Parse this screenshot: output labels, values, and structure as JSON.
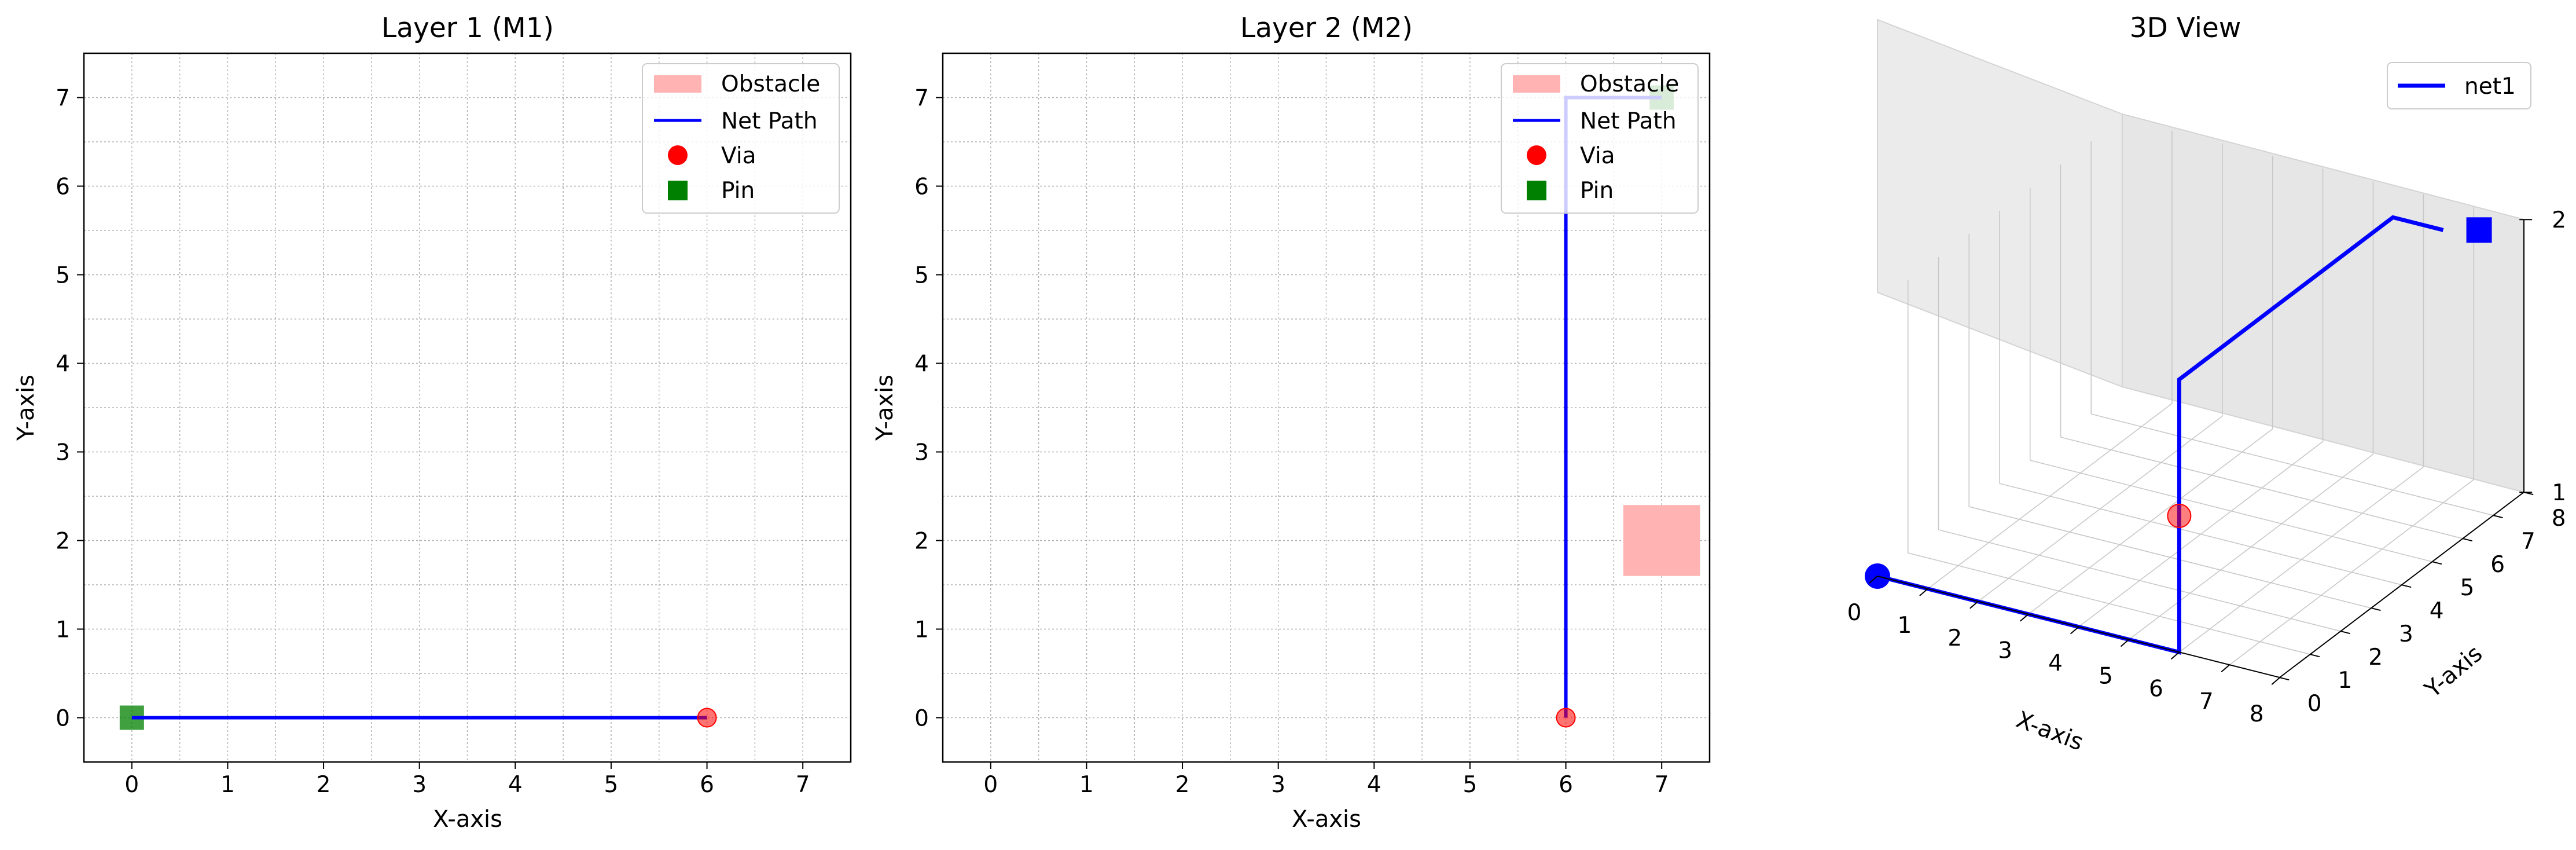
{
  "panels": [
    {
      "title": "Layer 1 (M1)",
      "xlabel": "X-axis",
      "ylabel": "Y-axis",
      "xticks": [
        "0",
        "1",
        "2",
        "3",
        "4",
        "5",
        "6",
        "7"
      ],
      "yticks": [
        "0",
        "1",
        "2",
        "3",
        "4",
        "5",
        "6",
        "7"
      ],
      "legend": {
        "obstacle": "Obstacle",
        "path": "Net Path",
        "via": "Via",
        "pin": "Pin"
      }
    },
    {
      "title": "Layer 2 (M2)",
      "xlabel": "X-axis",
      "ylabel": "Y-axis",
      "xticks": [
        "0",
        "1",
        "2",
        "3",
        "4",
        "5",
        "6",
        "7"
      ],
      "yticks": [
        "0",
        "1",
        "2",
        "3",
        "4",
        "5",
        "6",
        "7"
      ],
      "legend": {
        "obstacle": "Obstacle",
        "path": "Net Path",
        "via": "Via",
        "pin": "Pin"
      }
    },
    {
      "title": "3D View",
      "xlabel": "X-axis",
      "ylabel": "Y-axis",
      "xticks": [
        "0",
        "1",
        "2",
        "3",
        "4",
        "5",
        "6",
        "7",
        "8"
      ],
      "yticks": [
        "0",
        "1",
        "2",
        "3",
        "4",
        "5",
        "6",
        "7",
        "8"
      ],
      "zticks": [
        "1",
        "2"
      ],
      "legend": {
        "net": "net1"
      }
    }
  ],
  "colors": {
    "path": "#0000ff",
    "via": "#ff0000",
    "pin": "#008000",
    "obstacle": "#ffb3b3",
    "grid": "#b0b0b0"
  },
  "chart_data": [
    {
      "type": "line",
      "title": "Layer 1 (M1)",
      "xlabel": "X-axis",
      "ylabel": "Y-axis",
      "xlim": [
        -0.5,
        7.5
      ],
      "ylim": [
        -0.5,
        7.5
      ],
      "grid": true,
      "legend_position": "top-right",
      "series": [
        {
          "name": "Net Path",
          "x": [
            0,
            6
          ],
          "y": [
            0,
            0
          ]
        },
        {
          "name": "Via",
          "x": [
            6
          ],
          "y": [
            0
          ]
        },
        {
          "name": "Pin",
          "x": [
            0
          ],
          "y": [
            0
          ]
        }
      ],
      "obstacles": []
    },
    {
      "type": "line",
      "title": "Layer 2 (M2)",
      "xlabel": "X-axis",
      "ylabel": "Y-axis",
      "xlim": [
        -0.5,
        7.5
      ],
      "ylim": [
        -0.5,
        7.5
      ],
      "grid": true,
      "legend_position": "top-right",
      "series": [
        {
          "name": "Net Path",
          "x": [
            6,
            6,
            7
          ],
          "y": [
            0,
            7,
            7
          ]
        },
        {
          "name": "Via",
          "x": [
            6
          ],
          "y": [
            0
          ]
        },
        {
          "name": "Pin",
          "x": [
            7
          ],
          "y": [
            7
          ]
        }
      ],
      "obstacles": [
        {
          "x": [
            6.6,
            7.4
          ],
          "y": [
            1.6,
            2.4
          ]
        }
      ]
    },
    {
      "type": "line",
      "title": "3D View",
      "xlabel": "X-axis",
      "ylabel": "Y-axis",
      "xlim": [
        0,
        8
      ],
      "ylim": [
        0,
        8
      ],
      "zlim": [
        1,
        2
      ],
      "grid": true,
      "legend_position": "top-right",
      "series": [
        {
          "name": "net1",
          "x": [
            0,
            6,
            6,
            6,
            7
          ],
          "y": [
            0,
            0,
            0,
            7,
            7
          ],
          "z": [
            1,
            1,
            2,
            2,
            2
          ]
        }
      ],
      "via": {
        "x": [
          6
        ],
        "y": [
          0
        ],
        "z": [
          1.5
        ]
      }
    }
  ]
}
